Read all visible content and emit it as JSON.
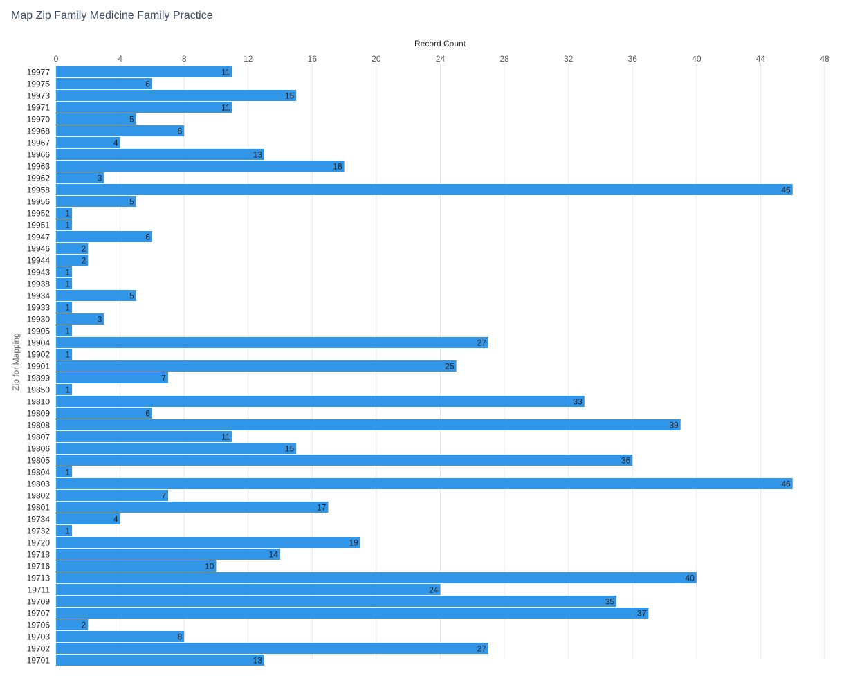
{
  "chart_data": {
    "type": "bar",
    "orientation": "horizontal",
    "title": "Map Zip Family Medicine Family Practice",
    "xlabel": "Record Count",
    "ylabel": "Zip for Mapping",
    "xlim": [
      0,
      48
    ],
    "xticks": [
      0,
      4,
      8,
      12,
      16,
      20,
      24,
      28,
      32,
      36,
      40,
      44,
      48
    ],
    "grid": true,
    "colors": {
      "bar": "#3296e8",
      "grid": "#e6e6e6"
    },
    "categories": [
      "19977",
      "19975",
      "19973",
      "19971",
      "19970",
      "19968",
      "19967",
      "19966",
      "19963",
      "19962",
      "19958",
      "19956",
      "19952",
      "19951",
      "19947",
      "19946",
      "19944",
      "19943",
      "19938",
      "19934",
      "19933",
      "19930",
      "19905",
      "19904",
      "19902",
      "19901",
      "19899",
      "19850",
      "19810",
      "19809",
      "19808",
      "19807",
      "19806",
      "19805",
      "19804",
      "19803",
      "19802",
      "19801",
      "19734",
      "19732",
      "19720",
      "19718",
      "19716",
      "19713",
      "19711",
      "19709",
      "19707",
      "19706",
      "19703",
      "19702",
      "19701"
    ],
    "values": [
      11,
      6,
      15,
      11,
      5,
      8,
      4,
      13,
      18,
      3,
      46,
      5,
      1,
      1,
      6,
      2,
      2,
      1,
      1,
      5,
      1,
      3,
      1,
      27,
      1,
      25,
      7,
      1,
      33,
      6,
      39,
      11,
      15,
      36,
      1,
      46,
      7,
      17,
      4,
      1,
      19,
      14,
      10,
      40,
      24,
      35,
      37,
      2,
      8,
      27,
      13
    ]
  }
}
